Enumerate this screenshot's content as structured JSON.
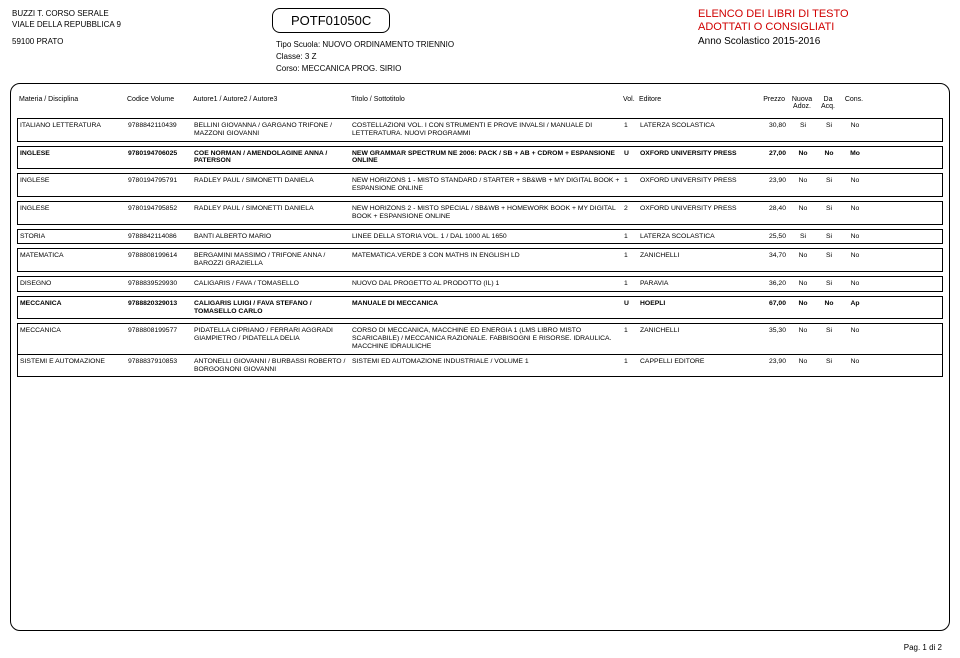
{
  "header": {
    "school_name": "BUZZI T. CORSO SERALE",
    "address": "VIALE DELLA REPUBBLICA 9",
    "city": "59100  PRATO",
    "code": "POTF01050C",
    "tipo_label": "Tipo Scuola:",
    "tipo_value": "NUOVO ORDINAMENTO TRIENNIO",
    "classe_label": "Classe:",
    "classe_value": "3 Z",
    "corso_label": "Corso:",
    "corso_value": "MECCANICA PROG. SIRIO",
    "title1": "ELENCO DEI LIBRI DI TESTO",
    "title2": "ADOTTATI O CONSIGLIATI",
    "year": "Anno Scolastico 2015-2016"
  },
  "columns": {
    "materia": "Materia / Disciplina",
    "codice": "Codice Volume",
    "autore": "Autore1 / Autore2 / Autore3",
    "titolo": "Titolo / Sottotitolo",
    "vol": "Vol.",
    "editore": "Editore",
    "prezzo": "Prezzo",
    "nuova": "Nuova\nAdoz.",
    "da": "Da\nAcq.",
    "cons": "Cons."
  },
  "groups": [
    {
      "bold": false,
      "rows": [
        {
          "materia": "ITALIANO LETTERATURA",
          "codice": "9788842110439",
          "autore": "BELLINI GIOVANNA / GARGANO TRIFONE / MAZZONI GIOVANNI",
          "titolo": "COSTELLAZIONI VOL. I CON STRUMENTI E PROVE INVALSI / MANUALE DI LETTERATURA. NUOVI PROGRAMMI",
          "vol": "1",
          "editore": "LATERZA SCOLASTICA",
          "prezzo": "30,80",
          "nad": "Si",
          "daq": "Si",
          "con": "No"
        }
      ]
    },
    {
      "bold": true,
      "rows": [
        {
          "materia": "INGLESE",
          "codice": "9780194706025",
          "autore": "COE NORMAN / AMENDOLAGINE ANNA / PATERSON",
          "titolo": "NEW GRAMMAR SPECTRUM NE 2006: PACK / SB + AB + CDROM + ESPANSIONE ONLINE",
          "vol": "U",
          "editore": "OXFORD UNIVERSITY PRESS",
          "prezzo": "27,00",
          "nad": "No",
          "daq": "No",
          "con": "Mo"
        }
      ]
    },
    {
      "bold": false,
      "rows": [
        {
          "materia": "INGLESE",
          "codice": "9780194795791",
          "autore": "RADLEY PAUL / SIMONETTI DANIELA",
          "titolo": "NEW HORIZONS 1 - MISTO STANDARD / STARTER + SB&WB + MY DIGITAL BOOK + ESPANSIONE ONLINE",
          "vol": "1",
          "editore": "OXFORD UNIVERSITY PRESS",
          "prezzo": "23,90",
          "nad": "No",
          "daq": "Si",
          "con": "No"
        }
      ]
    },
    {
      "bold": false,
      "rows": [
        {
          "materia": "INGLESE",
          "codice": "9780194795852",
          "autore": "RADLEY PAUL / SIMONETTI DANIELA",
          "titolo": "NEW HORIZONS 2 - MISTO SPECIAL / SB&WB + HOMEWORK BOOK + MY DIGITAL BOOK + ESPANSIONE ONLINE",
          "vol": "2",
          "editore": "OXFORD UNIVERSITY PRESS",
          "prezzo": "28,40",
          "nad": "No",
          "daq": "Si",
          "con": "No"
        }
      ]
    },
    {
      "bold": false,
      "rows": [
        {
          "materia": "STORIA",
          "codice": "9788842114086",
          "autore": "BANTI ALBERTO MARIO",
          "titolo": "LINEE DELLA STORIA VOL. 1 / DAL 1000 AL 1650",
          "vol": "1",
          "editore": "LATERZA SCOLASTICA",
          "prezzo": "25,50",
          "nad": "Si",
          "daq": "Si",
          "con": "No"
        }
      ]
    },
    {
      "bold": false,
      "rows": [
        {
          "materia": "MATEMATICA",
          "codice": "9788808199614",
          "autore": "BERGAMINI MASSIMO / TRIFONE ANNA / BAROZZI GRAZIELLA",
          "titolo": "MATEMATICA.VERDE 3 CON MATHS IN ENGLISH LD",
          "vol": "1",
          "editore": "ZANICHELLI",
          "prezzo": "34,70",
          "nad": "No",
          "daq": "Si",
          "con": "No"
        }
      ]
    },
    {
      "bold": false,
      "rows": [
        {
          "materia": "DISEGNO",
          "codice": "9788839529930",
          "autore": "CALIGARIS / FAVA / TOMASELLO",
          "titolo": "NUOVO DAL PROGETTO AL PRODOTTO (IL) 1",
          "vol": "1",
          "editore": "PARAVIA",
          "prezzo": "36,20",
          "nad": "No",
          "daq": "Si",
          "con": "No"
        }
      ]
    },
    {
      "bold": true,
      "rows": [
        {
          "materia": "MECCANICA",
          "codice": "9788820329013",
          "autore": "CALIGARIS LUIGI / FAVA STEFANO / TOMASELLO CARLO",
          "titolo": "MANUALE DI MECCANICA",
          "vol": "U",
          "editore": "HOEPLI",
          "prezzo": "67,00",
          "nad": "No",
          "daq": "No",
          "con": "Ap"
        }
      ]
    },
    {
      "bold": false,
      "rows": [
        {
          "materia": "MECCANICA",
          "codice": "9788808199577",
          "autore": "PIDATELLA CIPRIANO / FERRARI AGGRADI GIAMPIETRO / PIDATELLA DELIA",
          "titolo": "CORSO DI MECCANICA, MACCHINE ED ENERGIA 1 (LMS LIBRO MISTO SCARICABILE) / MECCANICA RAZIONALE. FABBISOGNI E RISORSE. IDRAULICA. MACCHINE IDRAULICHE",
          "vol": "1",
          "editore": "ZANICHELLI",
          "prezzo": "35,30",
          "nad": "No",
          "daq": "Si",
          "con": "No"
        },
        {
          "materia": "SISTEMI E AUTOMAZIONE",
          "codice": "9788837910853",
          "autore": "ANTONELLI GIOVANNI / BURBASSI ROBERTO / BORGOGNONI GIOVANNI",
          "titolo": "SISTEMI ED AUTOMAZIONE INDUSTRIALE / VOLUME 1",
          "vol": "1",
          "editore": "CAPPELLI EDITORE",
          "prezzo": "23,90",
          "nad": "No",
          "daq": "Si",
          "con": "No"
        }
      ]
    }
  ],
  "footer": "Pag. 1 di 2"
}
